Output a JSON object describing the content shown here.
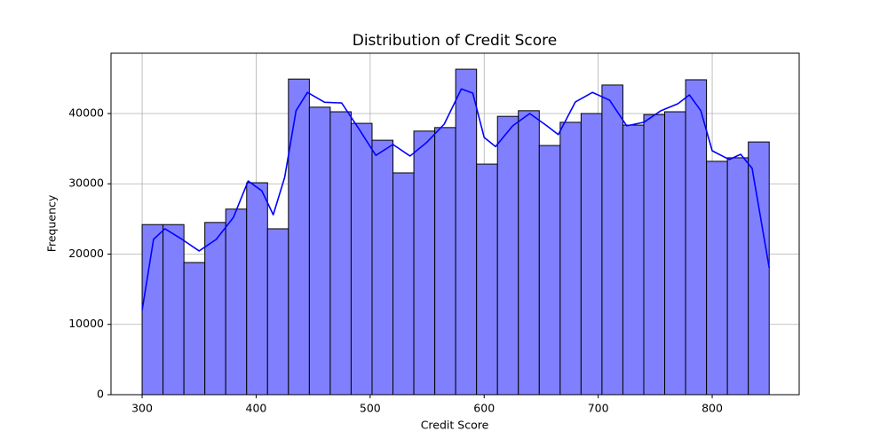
{
  "chart_data": {
    "type": "histogram",
    "title": "Distribution of Credit Score",
    "xlabel": "Credit Score",
    "ylabel": "Frequency",
    "bins": [
      300,
      318.33,
      336.67,
      355,
      373.33,
      391.67,
      410,
      428.33,
      446.67,
      465,
      483.33,
      501.67,
      520,
      538.33,
      556.67,
      575,
      593.33,
      611.67,
      630,
      648.33,
      666.67,
      685,
      703.33,
      721.67,
      740,
      758.33,
      776.67,
      795,
      813.33,
      831.67,
      850
    ],
    "counts": [
      24200,
      24200,
      18800,
      24500,
      26400,
      30150,
      23600,
      44900,
      40900,
      40250,
      38600,
      36200,
      31550,
      37500,
      38000,
      46300,
      32800,
      39600,
      40400,
      35450,
      38750,
      40000,
      44050,
      38350,
      39850,
      40250,
      44800,
      33200,
      33700,
      35950
    ],
    "color": "#8080ff",
    "edgecolor": "#000000",
    "kde": {
      "color": "#0000ff",
      "x": [
        300,
        310,
        320,
        335,
        350,
        365,
        380,
        393,
        405,
        415,
        425,
        435,
        445,
        460,
        475,
        490,
        505,
        520,
        535,
        550,
        565,
        580,
        590,
        600,
        610,
        625,
        640,
        655,
        665,
        680,
        695,
        710,
        725,
        740,
        755,
        770,
        780,
        790,
        800,
        815,
        825,
        835,
        850
      ],
      "values": [
        12000,
        22100,
        23600,
        22100,
        20450,
        22100,
        25200,
        30400,
        29000,
        25600,
        30900,
        40400,
        43000,
        41600,
        41500,
        37850,
        34050,
        35600,
        33950,
        35950,
        38500,
        43500,
        42900,
        36600,
        35300,
        38250,
        40000,
        38250,
        37000,
        41650,
        43000,
        41900,
        38250,
        38750,
        40400,
        41400,
        42650,
        40400,
        34700,
        33450,
        34200,
        32200,
        18050
      ]
    },
    "xlim": [
      272.7,
      876.3
    ],
    "ylim": [
      0,
      48580
    ],
    "xticks": [
      300,
      400,
      500,
      600,
      700,
      800
    ],
    "yticks": [
      0,
      10000,
      20000,
      30000,
      40000
    ],
    "grid": true
  }
}
